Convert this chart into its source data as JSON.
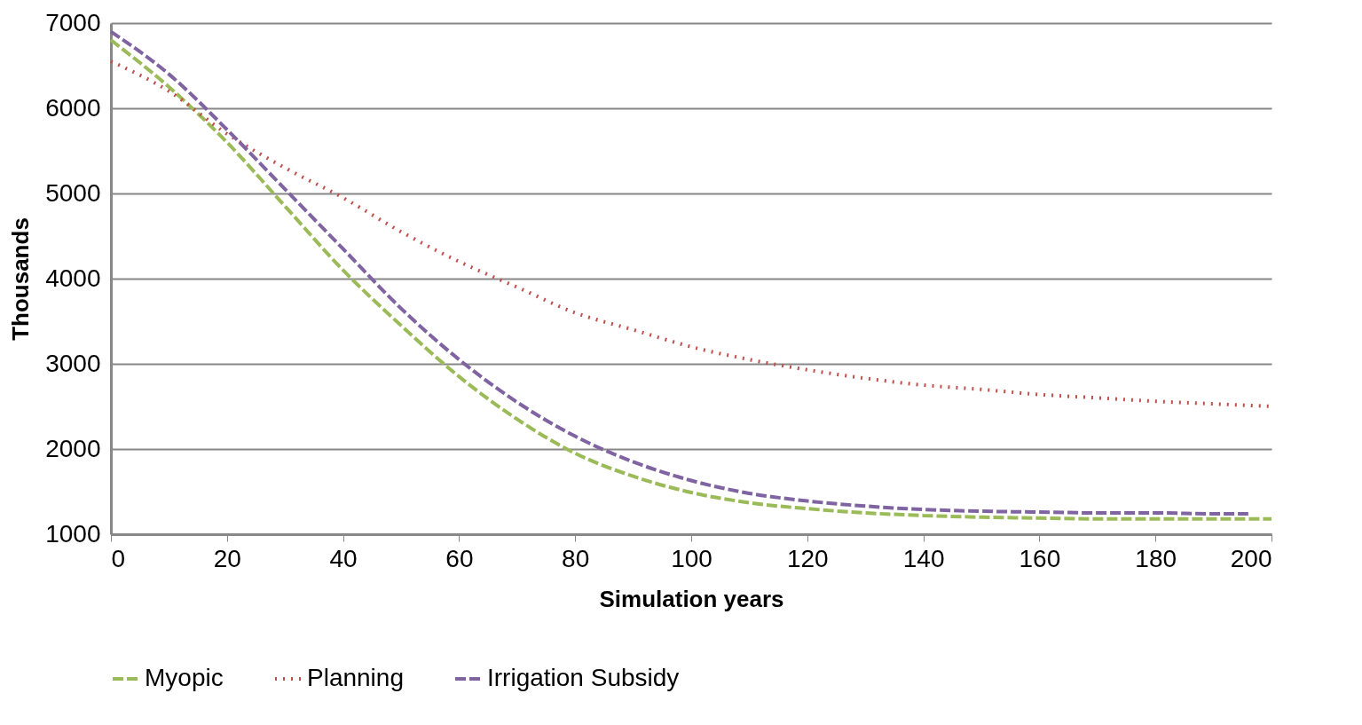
{
  "chart_data": {
    "type": "line",
    "xlabel": "Simulation years",
    "ylabel": "Thousands",
    "x": [
      0,
      10,
      20,
      30,
      40,
      50,
      60,
      70,
      80,
      90,
      100,
      110,
      120,
      130,
      140,
      150,
      160,
      170,
      180,
      190,
      200
    ],
    "series": [
      {
        "name": "Myopic",
        "color": "#9bbb59",
        "line_style": "dashed",
        "values": [
          6800,
          6250,
          5600,
          4850,
          4100,
          3450,
          2850,
          2350,
          1950,
          1680,
          1490,
          1370,
          1300,
          1250,
          1220,
          1200,
          1190,
          1180,
          1180,
          1180,
          1180
        ]
      },
      {
        "name": "Planning",
        "color": "#c0504d",
        "line_style": "dotted",
        "values": [
          6550,
          6200,
          5700,
          5300,
          4950,
          4550,
          4200,
          3900,
          3600,
          3400,
          3200,
          3050,
          2930,
          2830,
          2750,
          2700,
          2640,
          2600,
          2560,
          2530,
          2500
        ]
      },
      {
        "name": "Irrigation Subsidy",
        "color": "#8064a2",
        "line_style": "dashed",
        "x": [
          0,
          10,
          20,
          30,
          40,
          50,
          60,
          70,
          80,
          90,
          100,
          110,
          120,
          130,
          140,
          150,
          160,
          170,
          180,
          190,
          196
        ],
        "values": [
          6900,
          6400,
          5750,
          5050,
          4350,
          3650,
          3050,
          2550,
          2150,
          1850,
          1630,
          1480,
          1390,
          1330,
          1290,
          1270,
          1260,
          1250,
          1250,
          1240,
          1240
        ]
      }
    ],
    "xlim": [
      0,
      200
    ],
    "xticks": [
      0,
      20,
      40,
      60,
      80,
      100,
      120,
      140,
      160,
      180,
      200
    ],
    "ylim": [
      1000,
      7000
    ],
    "yticks": [
      1000,
      2000,
      3000,
      4000,
      5000,
      6000,
      7000
    ],
    "grid": "y",
    "legend": "bottom",
    "marker": "none"
  }
}
